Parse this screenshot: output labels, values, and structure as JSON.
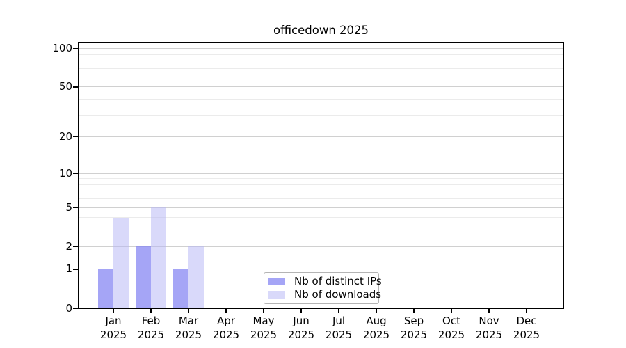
{
  "chart_data": {
    "type": "bar",
    "title": "officedown 2025",
    "x_categories": [
      "Jan",
      "Feb",
      "Mar",
      "Apr",
      "May",
      "Jun",
      "Jul",
      "Aug",
      "Sep",
      "Oct",
      "Nov",
      "Dec"
    ],
    "x_year": "2025",
    "series": [
      {
        "name": "Nb of distinct IPs",
        "color": "#a7a7f5",
        "fill": "rgba(130,130,242,0.72)",
        "values": [
          1,
          2,
          1,
          0,
          0,
          0,
          0,
          0,
          0,
          0,
          0,
          0
        ]
      },
      {
        "name": "Nb of downloads",
        "color": "#dbdbf9",
        "fill": "rgba(180,180,245,0.5)",
        "values": [
          4,
          5,
          2,
          0,
          0,
          0,
          0,
          0,
          0,
          0,
          0,
          0
        ]
      }
    ],
    "y_scale": "log1p",
    "y_ticks": [
      0,
      1,
      2,
      5,
      10,
      20,
      50,
      100
    ],
    "y_minor_gridlines": [
      3,
      4,
      6,
      7,
      8,
      9,
      30,
      40,
      60,
      70,
      80,
      90
    ],
    "ylim": [
      0,
      110
    ],
    "grid": "horizontal",
    "legend_position": "bottom-center",
    "colors": {
      "axis": "#000000",
      "grid_major": "#d0d0d0",
      "grid_minor": "#ebebeb",
      "legend_border": "#b4b4b4",
      "background": "#ffffff"
    }
  }
}
